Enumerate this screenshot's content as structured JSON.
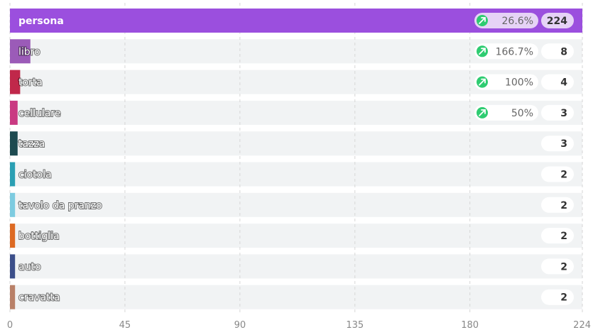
{
  "chart_data": {
    "type": "bar",
    "orientation": "horizontal",
    "categories": [
      "persona",
      "libro",
      "torta",
      "cellulare",
      "tazza",
      "ciotola",
      "tavolo da pranzo",
      "bottiglia",
      "auto",
      "cravatta"
    ],
    "values": [
      224,
      8,
      4,
      3,
      3,
      2,
      2,
      2,
      2,
      2
    ],
    "change_percent": [
      "26.6%",
      "166.7%",
      "100%",
      "50%",
      null,
      null,
      null,
      null,
      null,
      null
    ],
    "colors": [
      "#9b4fde",
      "#9b5bb8",
      "#c0284a",
      "#c93a82",
      "#1d4a50",
      "#2a9fb3",
      "#7dcbe0",
      "#dd6a23",
      "#3c4f8a",
      "#b98068"
    ],
    "change_icon_color": "#2ecc71",
    "xlim": [
      0,
      224
    ],
    "xticks": [
      0,
      45,
      90,
      135,
      180,
      224
    ],
    "grid": true
  }
}
